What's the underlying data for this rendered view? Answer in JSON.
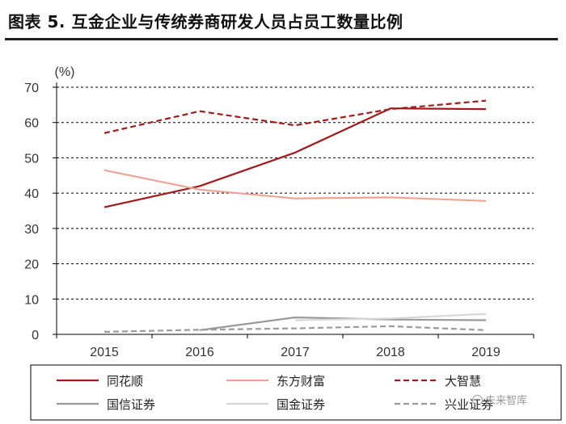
{
  "title": "图表 5. 互金企业与传统券商研发人员占员工数量比例",
  "watermark": "未来智库",
  "colors": {
    "red": "#a31a1a",
    "pink": "#f0a394",
    "gray": "#9a9a9a",
    "lightgray": "#d8d8d8",
    "grid": "#000000"
  },
  "chart_data": {
    "type": "line",
    "title": "互金企业与传统券商研发人员占员工数量比例",
    "unit_label": "(%)",
    "xlabel": "",
    "ylabel": "(%)",
    "ylim": [
      0,
      70
    ],
    "yticks": [
      0,
      10,
      20,
      30,
      40,
      50,
      60,
      70
    ],
    "categories": [
      "2015",
      "2016",
      "2017",
      "2018",
      "2019"
    ],
    "grid": "horizontal dashed",
    "legend_position": "bottom",
    "series": [
      {
        "name": "同花顺",
        "values": [
          36,
          42,
          51.5,
          64,
          63.8
        ],
        "color": "#a31a1a",
        "dash": false
      },
      {
        "name": "东方财富",
        "values": [
          46.5,
          41,
          38.5,
          38.8,
          37.8
        ],
        "color": "#f0a394",
        "dash": false
      },
      {
        "name": "大智慧",
        "values": [
          57,
          63.2,
          59.2,
          63.8,
          66.2
        ],
        "color": "#a31a1a",
        "dash": true
      },
      {
        "name": "国信证券",
        "values": [
          null,
          1.2,
          4.8,
          4.2,
          4
        ],
        "color": "#9a9a9a",
        "dash": false
      },
      {
        "name": "国金证券",
        "values": [
          null,
          null,
          4,
          4.5,
          5.8
        ],
        "color": "#d8d8d8",
        "dash": false
      },
      {
        "name": "兴业证券",
        "values": [
          0.7,
          1.3,
          1.7,
          2.3,
          1.2
        ],
        "color": "#9a9a9a",
        "dash": true
      }
    ]
  }
}
